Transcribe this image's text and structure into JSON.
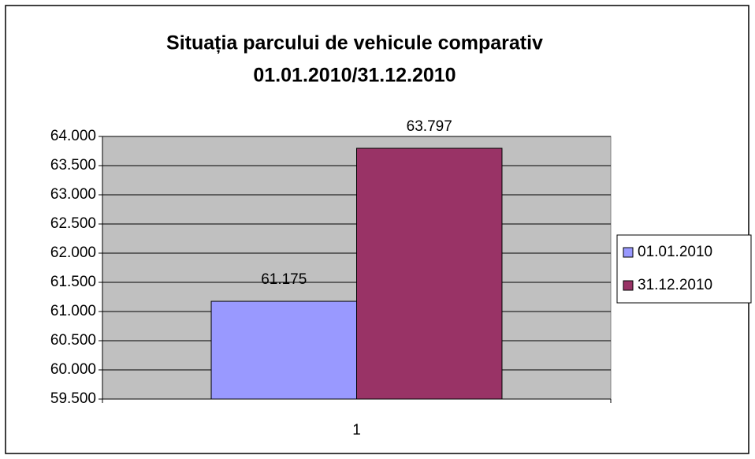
{
  "chart_data": {
    "type": "bar",
    "title": [
      "Situația parcului de vehicule comparativ",
      "01.01.2010/31.12.2010"
    ],
    "categories": [
      "1"
    ],
    "series": [
      {
        "name": "01.01.2010",
        "color": "#9999ff",
        "values": [
          61175
        ],
        "value_labels": [
          "61.175"
        ]
      },
      {
        "name": "31.12.2010",
        "color": "#993366",
        "values": [
          63797
        ],
        "value_labels": [
          "63.797"
        ]
      }
    ],
    "ylim": [
      59500,
      64000
    ],
    "yticks": [
      {
        "value": 59500,
        "label": "59.500"
      },
      {
        "value": 60000,
        "label": "60.000"
      },
      {
        "value": 60500,
        "label": "60.500"
      },
      {
        "value": 61000,
        "label": "61.000"
      },
      {
        "value": 61500,
        "label": "61.500"
      },
      {
        "value": 62000,
        "label": "62.000"
      },
      {
        "value": 62500,
        "label": "62.500"
      },
      {
        "value": 63000,
        "label": "63.000"
      },
      {
        "value": 63500,
        "label": "63.500"
      },
      {
        "value": 64000,
        "label": "64.000"
      }
    ],
    "grid": true,
    "legend": "right",
    "plot_background": "#c0c0c0"
  }
}
